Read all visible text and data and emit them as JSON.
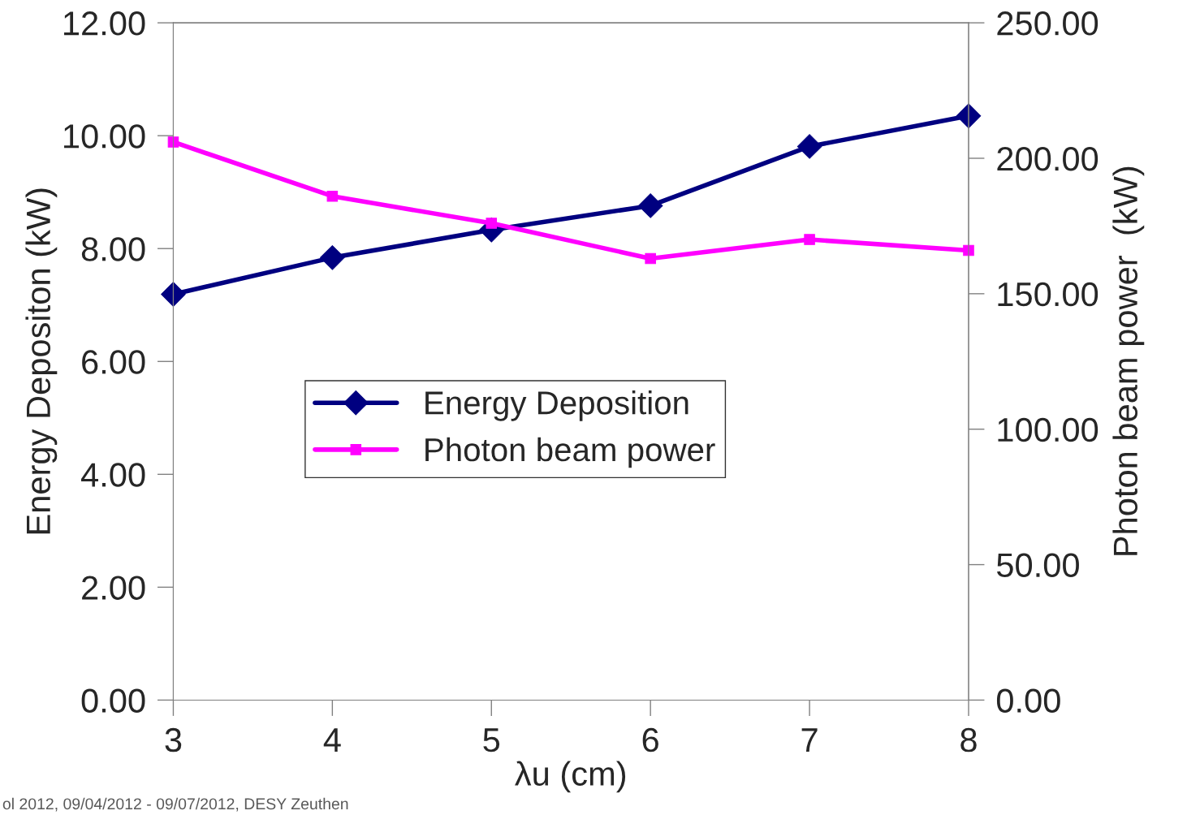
{
  "chart_data": {
    "type": "line",
    "xlabel": "λu (cm)",
    "ylabel": "Energy Depositon (kW)",
    "y2label": "Photon beam power  (kW)",
    "x": [
      3,
      4,
      5,
      6,
      7,
      8
    ],
    "series": [
      {
        "name": "Energy Deposition",
        "color": "#000080",
        "marker": "diamond",
        "values": [
          7.19,
          7.84,
          8.33,
          8.76,
          9.81,
          10.35
        ]
      },
      {
        "name": "Photon beam power",
        "color": "#ff00ff",
        "marker": "square",
        "axis": "y2",
        "values": [
          206,
          186,
          176,
          163,
          170,
          166
        ]
      }
    ],
    "xlim": [
      3,
      8
    ],
    "xticks": [
      3,
      4,
      5,
      6,
      7,
      8
    ],
    "ylim": [
      0,
      12
    ],
    "yticks": [
      {
        "value": 0,
        "label": "0.00"
      },
      {
        "value": 2,
        "label": "2.00"
      },
      {
        "value": 4,
        "label": "4.00"
      },
      {
        "value": 6,
        "label": "6.00"
      },
      {
        "value": 8,
        "label": "8.00"
      },
      {
        "value": 10,
        "label": "10.00"
      },
      {
        "value": 12,
        "label": "12.00"
      }
    ],
    "y2lim": [
      0,
      250
    ],
    "y2ticks": [
      {
        "value": 0,
        "label": "0.00"
      },
      {
        "value": 50,
        "label": "50.00"
      },
      {
        "value": 100,
        "label": "100.00"
      },
      {
        "value": 150,
        "label": "150.00"
      },
      {
        "value": 200,
        "label": "200.00"
      },
      {
        "value": 250,
        "label": "250.00"
      }
    ],
    "legend": "center",
    "grid": false,
    "annotations": [
      "ol 2012, 09/04/2012 - 09/07/2012, DESY Zeuthen"
    ]
  }
}
